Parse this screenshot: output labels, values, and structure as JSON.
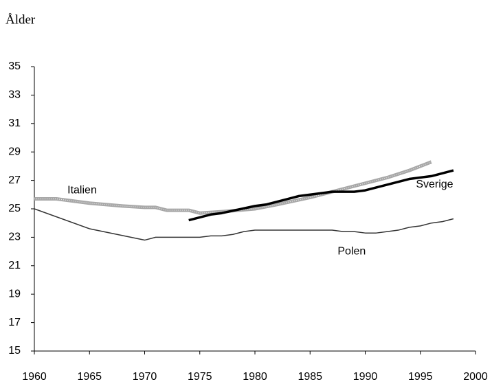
{
  "chart_data": {
    "type": "line",
    "title": "Ålder",
    "xlim": [
      1960,
      2000
    ],
    "xticks": [
      1960,
      1965,
      1970,
      1975,
      1980,
      1985,
      1990,
      1995,
      2000
    ],
    "ylim": [
      15,
      35
    ],
    "yticks": [
      15,
      17,
      19,
      21,
      23,
      25,
      27,
      29,
      31,
      33,
      35
    ],
    "grid": false,
    "series": [
      {
        "name": "Italien",
        "color": "#a8a8a8",
        "x": [
          1960,
          1962,
          1965,
          1968,
          1970,
          1971,
          1972,
          1974,
          1975,
          1977,
          1980,
          1982,
          1985,
          1988,
          1990,
          1992,
          1994,
          1996
        ],
        "values": [
          25.7,
          25.7,
          25.4,
          25.2,
          25.1,
          25.1,
          24.9,
          24.9,
          24.7,
          24.8,
          25.0,
          25.3,
          25.8,
          26.4,
          26.8,
          27.2,
          27.7,
          28.3
        ]
      },
      {
        "name": "Sverige",
        "color": "#000000",
        "x": [
          1974,
          1976,
          1977,
          1980,
          1981,
          1983,
          1984,
          1986,
          1987,
          1989,
          1990,
          1992,
          1994,
          1996,
          1998
        ],
        "values": [
          24.2,
          24.6,
          24.7,
          25.2,
          25.3,
          25.7,
          25.9,
          26.1,
          26.2,
          26.2,
          26.3,
          26.7,
          27.1,
          27.3,
          27.7
        ]
      },
      {
        "name": "Polen",
        "color": "#333333",
        "x": [
          1960,
          1965,
          1970,
          1971,
          1975,
          1976,
          1977,
          1978,
          1979,
          1980,
          1987,
          1988,
          1989,
          1990,
          1991,
          1992,
          1993,
          1994,
          1995,
          1996,
          1997,
          1998
        ],
        "values": [
          25.0,
          23.6,
          22.8,
          23.0,
          23.0,
          23.1,
          23.1,
          23.2,
          23.4,
          23.5,
          23.5,
          23.4,
          23.4,
          23.3,
          23.3,
          23.4,
          23.5,
          23.7,
          23.8,
          24.0,
          24.1,
          24.3
        ]
      }
    ]
  }
}
